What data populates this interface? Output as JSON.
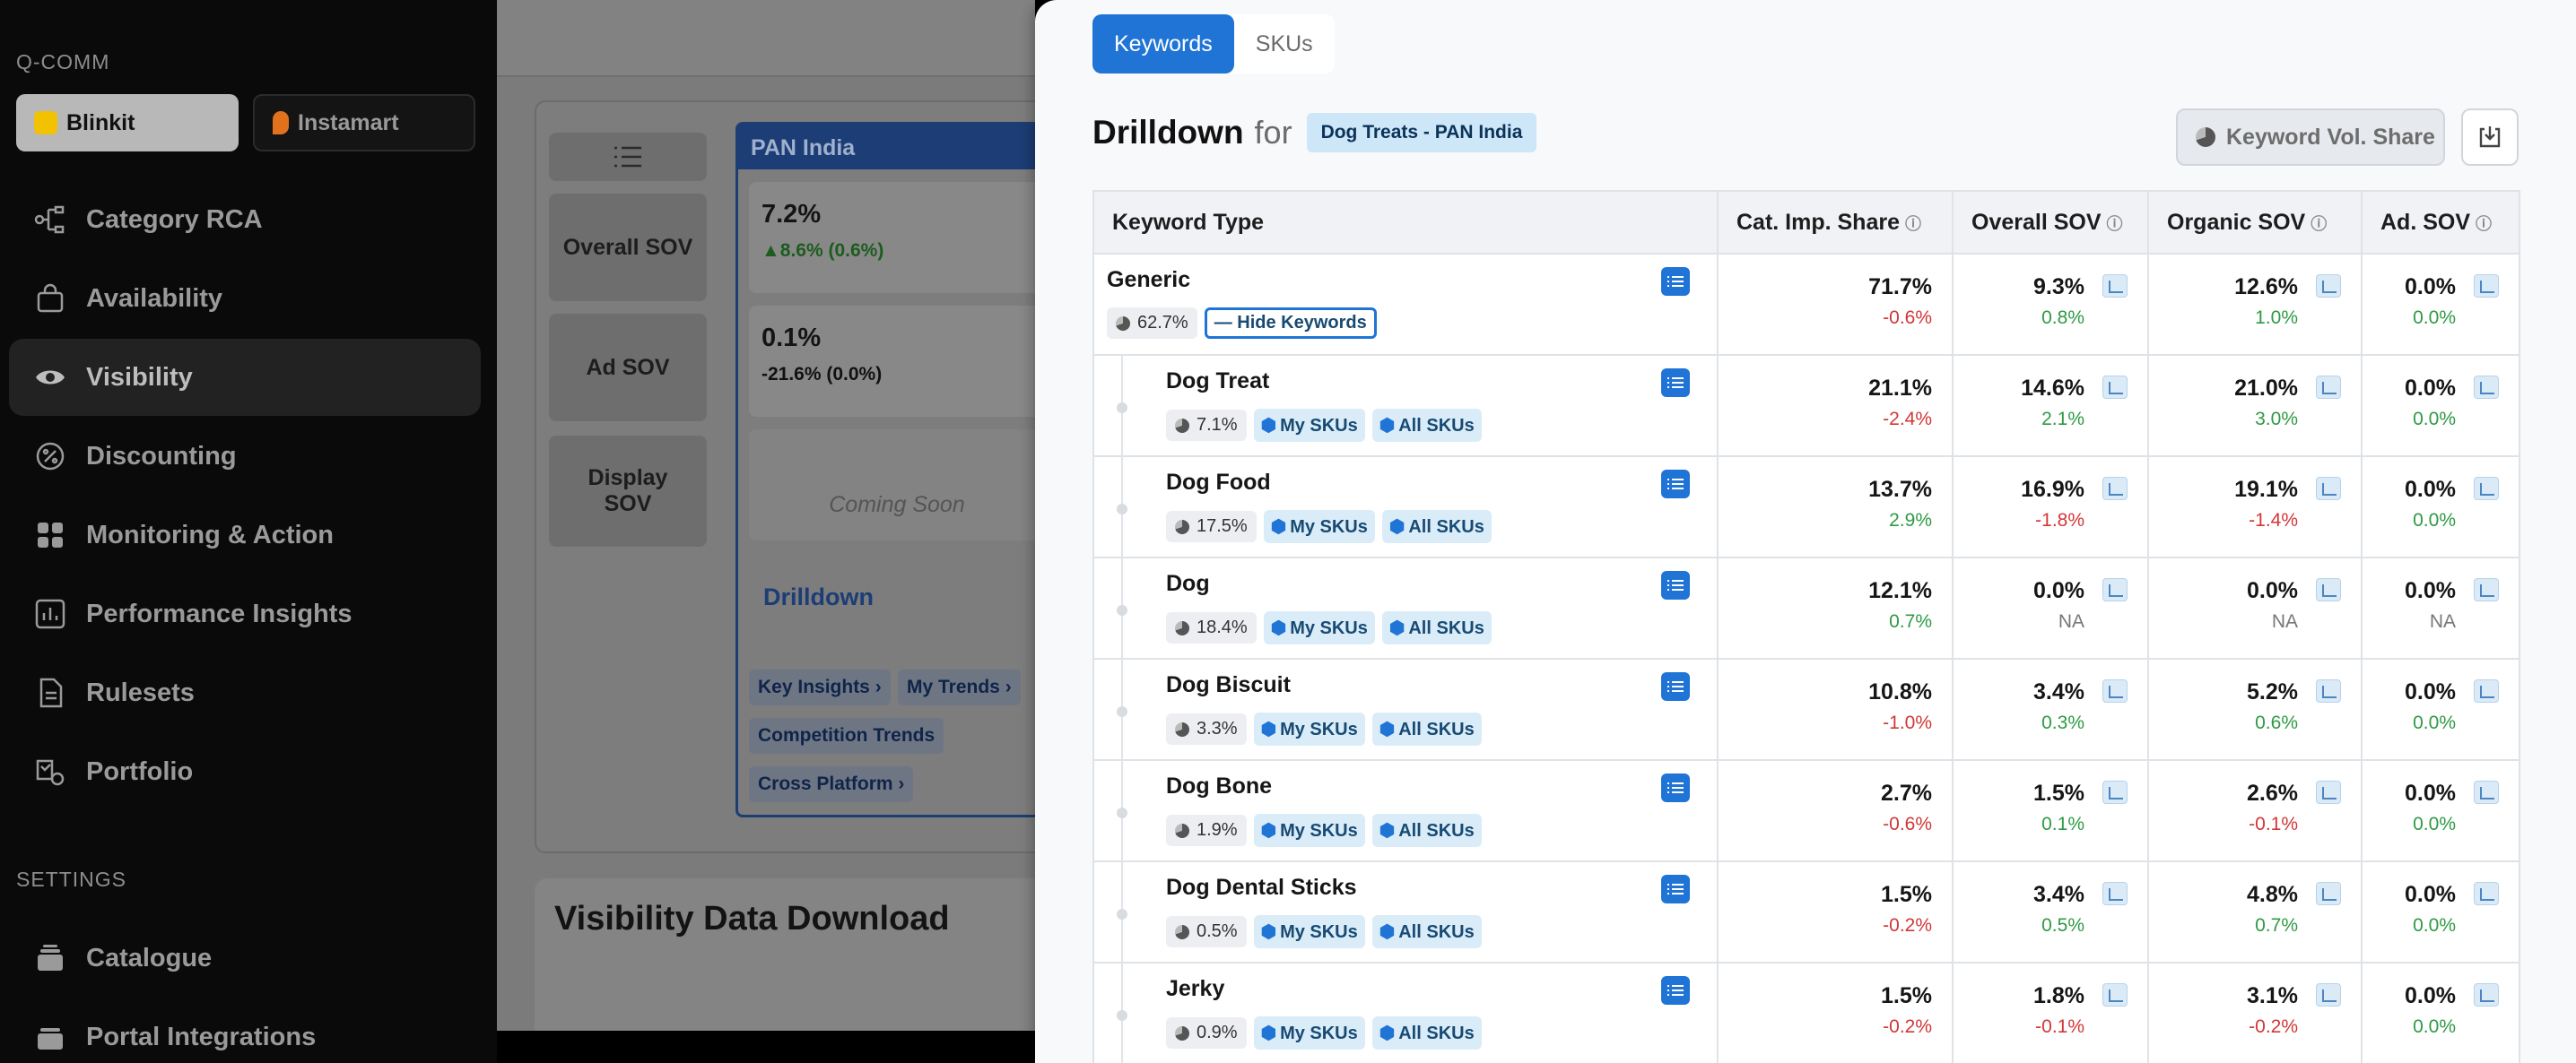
{
  "sidebar": {
    "section_qcomm": "Q-COMM",
    "platforms": [
      "Blinkit",
      "Instamart"
    ],
    "nav": [
      "Category RCA",
      "Availability",
      "Visibility",
      "Discounting",
      "Monitoring & Action",
      "Performance Insights",
      "Rulesets",
      "Portfolio"
    ],
    "section_settings": "SETTINGS",
    "settings_nav": [
      "Catalogue",
      "Portal Integrations"
    ]
  },
  "background": {
    "metrics": [
      "Overall SOV",
      "Ad SOV",
      "Display SOV"
    ],
    "region": "PAN India",
    "card1": {
      "value": "7.2%",
      "delta": "▲8.6% (0.6%)"
    },
    "card2": {
      "value": "0.1%",
      "delta": "-21.6% (0.0%)"
    },
    "coming_soon": "Coming Soon",
    "drilldown_link": "Drilldown",
    "chips": [
      "Key Insights ›",
      "My Trends ›",
      "Competition Trends",
      "Cross Platform ›"
    ],
    "download_title": "Visibility Data Download"
  },
  "drawer": {
    "tabs": [
      "Keywords",
      "SKUs"
    ],
    "title": "Drilldown",
    "for_word": "for",
    "tag": "Dog Treats - PAN India",
    "vol_share_button": "Keyword Vol. Share",
    "columns": [
      "Keyword Type",
      "Cat. Imp. Share",
      "Overall SOV",
      "Organic SOV",
      "Ad. SOV"
    ],
    "hide_keywords": "— Hide Keywords",
    "my_skus": "My SKUs",
    "all_skus": "All SKUs",
    "rows": [
      {
        "name": "Generic",
        "share": "62.7%",
        "imp": "71.7%",
        "imp_d": "-0.6%",
        "ov": "9.3%",
        "ov_d": "0.8%",
        "org": "12.6%",
        "org_d": "1.0%",
        "ad": "0.0%",
        "ad_d": "0.0%"
      },
      {
        "name": "Dog Treat",
        "share": "7.1%",
        "imp": "21.1%",
        "imp_d": "-2.4%",
        "ov": "14.6%",
        "ov_d": "2.1%",
        "org": "21.0%",
        "org_d": "3.0%",
        "ad": "0.0%",
        "ad_d": "0.0%"
      },
      {
        "name": "Dog Food",
        "share": "17.5%",
        "imp": "13.7%",
        "imp_d": "2.9%",
        "ov": "16.9%",
        "ov_d": "-1.8%",
        "org": "19.1%",
        "org_d": "-1.4%",
        "ad": "0.0%",
        "ad_d": "0.0%"
      },
      {
        "name": "Dog",
        "share": "18.4%",
        "imp": "12.1%",
        "imp_d": "0.7%",
        "ov": "0.0%",
        "ov_d": "NA",
        "org": "0.0%",
        "org_d": "NA",
        "ad": "0.0%",
        "ad_d": "NA"
      },
      {
        "name": "Dog Biscuit",
        "share": "3.3%",
        "imp": "10.8%",
        "imp_d": "-1.0%",
        "ov": "3.4%",
        "ov_d": "0.3%",
        "org": "5.2%",
        "org_d": "0.6%",
        "ad": "0.0%",
        "ad_d": "0.0%"
      },
      {
        "name": "Dog Bone",
        "share": "1.9%",
        "imp": "2.7%",
        "imp_d": "-0.6%",
        "ov": "1.5%",
        "ov_d": "0.1%",
        "org": "2.6%",
        "org_d": "-0.1%",
        "ad": "0.0%",
        "ad_d": "0.0%"
      },
      {
        "name": "Dog Dental Sticks",
        "share": "0.5%",
        "imp": "1.5%",
        "imp_d": "-0.2%",
        "ov": "3.4%",
        "ov_d": "0.5%",
        "org": "4.8%",
        "org_d": "0.7%",
        "ad": "0.0%",
        "ad_d": "0.0%"
      },
      {
        "name": "Jerky",
        "share": "0.9%",
        "imp": "1.5%",
        "imp_d": "-0.2%",
        "ov": "1.8%",
        "ov_d": "-0.1%",
        "org": "3.1%",
        "org_d": "-0.2%",
        "ad": "0.0%",
        "ad_d": "0.0%"
      }
    ]
  }
}
